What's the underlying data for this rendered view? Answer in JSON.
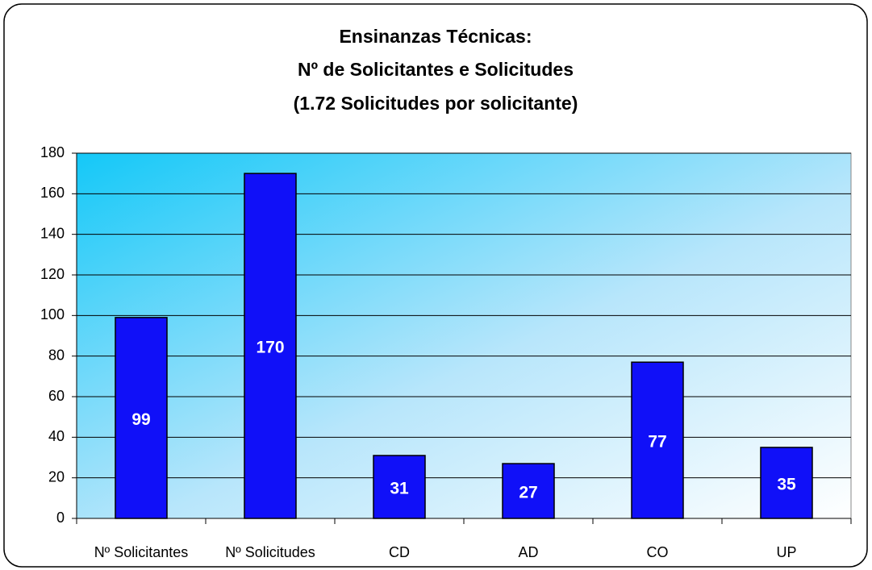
{
  "chart_data": {
    "type": "bar",
    "title": [
      "Ensinanzas Técnicas:",
      "Nº de Solicitantes e Solicitudes",
      "(1.72 Solicitudes por solicitante)"
    ],
    "categories": [
      "Nº Solicitantes",
      "Nº Solicitudes",
      "CD",
      "AD",
      "CO",
      "UP"
    ],
    "values": [
      99,
      170,
      31,
      27,
      77,
      35
    ],
    "color": "#1010f8",
    "ylim": [
      0,
      180
    ],
    "yticks": [
      0,
      20,
      40,
      60,
      80,
      100,
      120,
      140,
      160,
      180
    ],
    "grid": true
  }
}
